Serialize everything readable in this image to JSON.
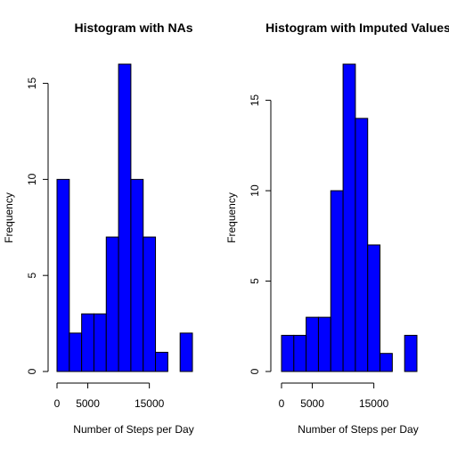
{
  "chart_data": [
    {
      "type": "histogram",
      "title": "Histogram with NAs",
      "x_label": "Number of Steps per Day",
      "y_label": "Frequency",
      "bins": [
        0,
        2000,
        4000,
        6000,
        8000,
        10000,
        12000,
        14000,
        16000,
        18000,
        20000,
        22000
      ],
      "values": [
        10,
        2,
        3,
        3,
        7,
        16,
        10,
        7,
        1,
        0,
        2
      ],
      "color": "#0000ff",
      "xlim": [
        0,
        22000
      ],
      "xticks": [
        0,
        5000,
        15000
      ],
      "ylim": [
        0,
        16
      ],
      "yticks": [
        0,
        5,
        10,
        15
      ]
    },
    {
      "type": "histogram",
      "title": "Histogram with Imputed Values",
      "x_label": "Number of Steps per Day",
      "y_label": "Frequency",
      "bins": [
        0,
        2000,
        4000,
        6000,
        8000,
        10000,
        12000,
        14000,
        16000,
        18000,
        20000,
        22000
      ],
      "values": [
        2,
        2,
        3,
        3,
        10,
        17,
        14,
        7,
        1,
        0,
        2
      ],
      "color": "#0000ff",
      "xlim": [
        0,
        22000
      ],
      "xticks": [
        0,
        5000,
        15000
      ],
      "ylim": [
        0,
        17
      ],
      "yticks": [
        0,
        5,
        10,
        15
      ]
    }
  ]
}
